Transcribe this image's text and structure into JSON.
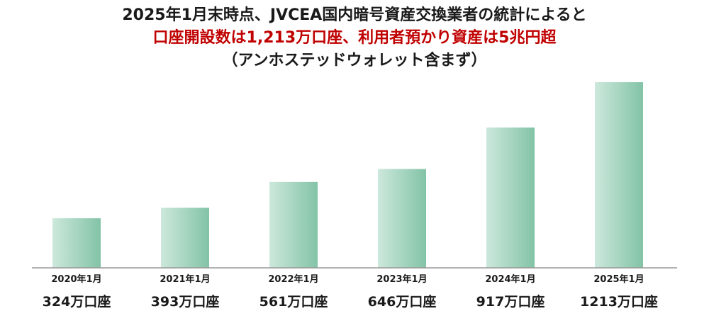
{
  "title": {
    "line1": "2025年1月末時点、JVCEA国内暗号資産交換業者の統計によると",
    "line2": "口座開設数は1,213万口座、利用者預かり資産は5兆円超",
    "line3": "（アンホステッドウォレット含まず）"
  },
  "colors": {
    "bar_light": "#cde8dc",
    "bar_dark": "#82c3a6",
    "title_highlight": "#c00000",
    "axis": "#9a9a9a"
  },
  "chart_data": {
    "type": "bar",
    "categories": [
      "2020年1月",
      "2021年1月",
      "2022年1月",
      "2023年1月",
      "2024年1月",
      "2025年1月"
    ],
    "values": [
      324,
      393,
      561,
      646,
      917,
      1213
    ],
    "value_labels": [
      "324万口座",
      "393万口座",
      "561万口座",
      "646万口座",
      "917万口座",
      "1213万口座"
    ],
    "title": "",
    "xlabel": "",
    "ylabel": "",
    "ylim": [
      0,
      1213
    ],
    "grid": false,
    "legend": "none"
  }
}
